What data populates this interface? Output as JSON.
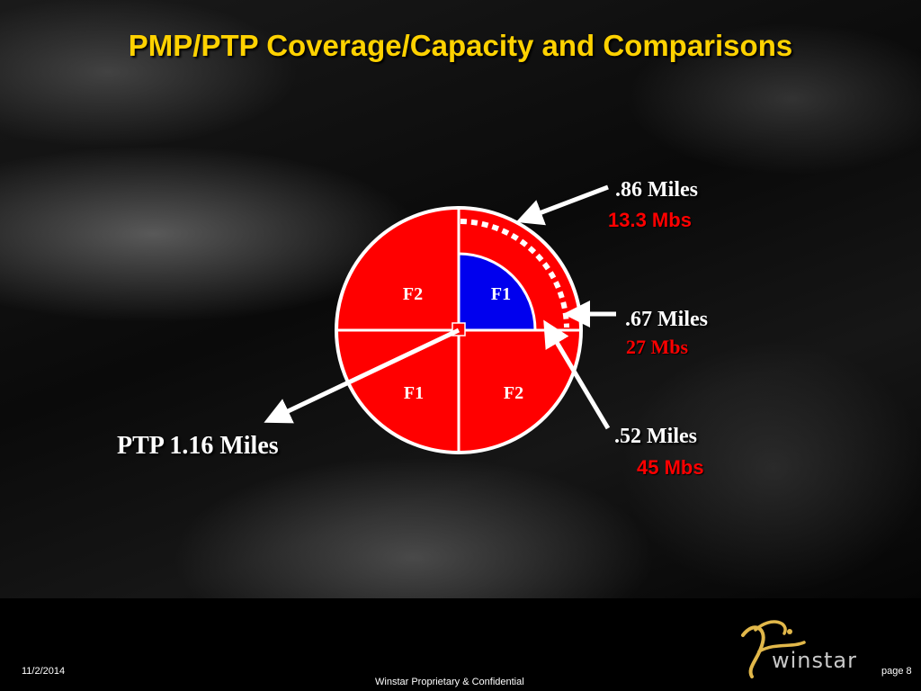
{
  "title": "PMP/PTP Coverage/Capacity and Comparisons",
  "sectors": {
    "top_left": "F2",
    "top_right": "F1",
    "bottom_left": "F1",
    "bottom_right": "F2"
  },
  "callouts": {
    "outer": {
      "distance": ".86 Miles",
      "capacity": "13.3 Mbs"
    },
    "middle": {
      "distance": ".67 Miles",
      "capacity": "27 Mbs"
    },
    "inner": {
      "distance": ".52 Miles",
      "capacity": "45 Mbs"
    },
    "ptp": "PTP 1.16 Miles"
  },
  "colors": {
    "title": "#ffd200",
    "sector_fill": "#ff0000",
    "inner_sector_fill": "#0000ff",
    "capacity_text": "#ff0000"
  },
  "footer": {
    "date": "11/2/2014",
    "confidential": "Winstar Proprietary & Confidential",
    "page": "page 8",
    "logo_text": "winstar"
  }
}
